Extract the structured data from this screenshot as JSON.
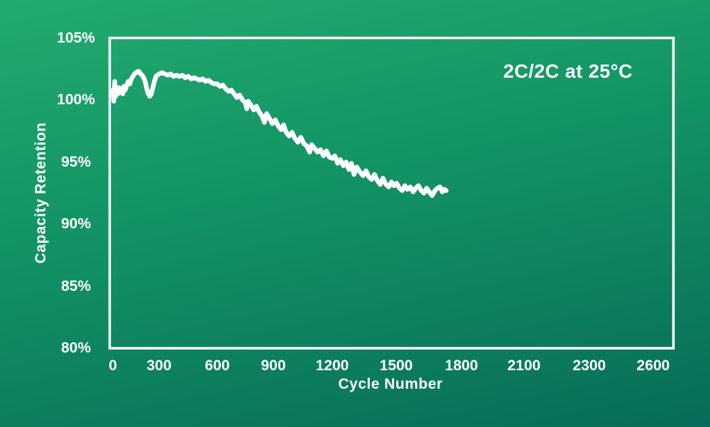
{
  "colors": {
    "background_top": "#23ab6f",
    "background_mid": "#129264",
    "background_bottom": "#086c59",
    "frame": "#ffffff",
    "text": "#ffffff",
    "line": "#ffffff"
  },
  "chart_data": {
    "type": "line",
    "title": "",
    "annotation": "2C/2C at 25°C",
    "xlabel": "Cycle Number",
    "ylabel": "Capacity Retention",
    "x_tick_labels": [
      "0",
      "300",
      "600",
      "900",
      "1200",
      "1500",
      "1800",
      "2100",
      "2300",
      "2600"
    ],
    "x_tick_values": [
      0,
      300,
      600,
      900,
      1200,
      1500,
      1800,
      2100,
      2300,
      2600
    ],
    "y_tick_labels": [
      "105%",
      "100%",
      "95%",
      "90%",
      "85%",
      "80%"
    ],
    "y_tick_values": [
      105,
      100,
      95,
      90,
      85,
      80
    ],
    "ylim": [
      80,
      105
    ],
    "grid": false,
    "legend_position": "none",
    "series": [
      {
        "name": "2C/2C at 25°C",
        "points": [
          [
            0,
            100.8
          ],
          [
            6,
            99.9
          ],
          [
            12,
            101.5
          ],
          [
            18,
            100.3
          ],
          [
            25,
            100.9
          ],
          [
            32,
            100.5
          ],
          [
            40,
            101.0
          ],
          [
            48,
            100.6
          ],
          [
            56,
            100.9
          ],
          [
            64,
            100.5
          ],
          [
            72,
            101.1
          ],
          [
            80,
            100.8
          ],
          [
            90,
            101.2
          ],
          [
            100,
            101.5
          ],
          [
            110,
            101.3
          ],
          [
            120,
            101.7
          ],
          [
            130,
            101.9
          ],
          [
            140,
            102.1
          ],
          [
            150,
            102.2
          ],
          [
            160,
            102.3
          ],
          [
            170,
            102.3
          ],
          [
            180,
            102.1
          ],
          [
            190,
            102.0
          ],
          [
            200,
            101.8
          ],
          [
            210,
            101.5
          ],
          [
            220,
            100.9
          ],
          [
            230,
            100.5
          ],
          [
            240,
            100.3
          ],
          [
            250,
            100.5
          ],
          [
            260,
            101.0
          ],
          [
            270,
            101.5
          ],
          [
            280,
            101.9
          ],
          [
            290,
            102.0
          ],
          [
            300,
            102.1
          ],
          [
            315,
            102.2
          ],
          [
            330,
            102.1
          ],
          [
            345,
            102.0
          ],
          [
            360,
            102.1
          ],
          [
            375,
            101.9
          ],
          [
            390,
            102.0
          ],
          [
            405,
            101.9
          ],
          [
            420,
            102.0
          ],
          [
            435,
            101.8
          ],
          [
            450,
            101.9
          ],
          [
            465,
            101.7
          ],
          [
            480,
            101.8
          ],
          [
            495,
            101.7
          ],
          [
            510,
            101.6
          ],
          [
            525,
            101.7
          ],
          [
            540,
            101.5
          ],
          [
            555,
            101.6
          ],
          [
            570,
            101.4
          ],
          [
            585,
            101.3
          ],
          [
            600,
            101.3
          ],
          [
            615,
            101.1
          ],
          [
            630,
            101.2
          ],
          [
            645,
            100.9
          ],
          [
            660,
            100.7
          ],
          [
            675,
            100.8
          ],
          [
            690,
            100.5
          ],
          [
            705,
            100.2
          ],
          [
            720,
            100.4
          ],
          [
            735,
            100.0
          ],
          [
            750,
            99.8
          ],
          [
            758,
            99.3
          ],
          [
            766,
            99.9
          ],
          [
            780,
            99.6
          ],
          [
            795,
            99.2
          ],
          [
            810,
            99.5
          ],
          [
            825,
            99.0
          ],
          [
            840,
            98.7
          ],
          [
            852,
            98.2
          ],
          [
            864,
            98.9
          ],
          [
            880,
            98.5
          ],
          [
            895,
            98.1
          ],
          [
            910,
            98.4
          ],
          [
            925,
            97.9
          ],
          [
            940,
            97.6
          ],
          [
            952,
            98.0
          ],
          [
            965,
            97.4
          ],
          [
            980,
            97.1
          ],
          [
            995,
            97.4
          ],
          [
            1010,
            96.9
          ],
          [
            1025,
            96.6
          ],
          [
            1040,
            97.0
          ],
          [
            1055,
            96.5
          ],
          [
            1070,
            96.3
          ],
          [
            1085,
            95.8
          ],
          [
            1095,
            96.4
          ],
          [
            1110,
            96.1
          ],
          [
            1125,
            95.8
          ],
          [
            1140,
            96.0
          ],
          [
            1155,
            95.5
          ],
          [
            1170,
            95.9
          ],
          [
            1185,
            95.4
          ],
          [
            1200,
            95.3
          ],
          [
            1212,
            95.5
          ],
          [
            1225,
            94.9
          ],
          [
            1238,
            95.2
          ],
          [
            1252,
            94.7
          ],
          [
            1265,
            95.0
          ],
          [
            1278,
            94.4
          ],
          [
            1290,
            94.9
          ],
          [
            1302,
            94.0
          ],
          [
            1315,
            94.6
          ],
          [
            1330,
            94.2
          ],
          [
            1345,
            93.9
          ],
          [
            1358,
            94.3
          ],
          [
            1372,
            93.8
          ],
          [
            1385,
            93.6
          ],
          [
            1398,
            94.0
          ],
          [
            1412,
            93.5
          ],
          [
            1425,
            93.2
          ],
          [
            1438,
            93.7
          ],
          [
            1452,
            93.2
          ],
          [
            1465,
            93.0
          ],
          [
            1478,
            93.4
          ],
          [
            1490,
            93.1
          ],
          [
            1502,
            93.3
          ],
          [
            1515,
            92.9
          ],
          [
            1528,
            92.7
          ],
          [
            1540,
            93.1
          ],
          [
            1552,
            92.8
          ],
          [
            1565,
            93.0
          ],
          [
            1578,
            92.6
          ],
          [
            1590,
            92.9
          ],
          [
            1602,
            93.1
          ],
          [
            1615,
            92.7
          ],
          [
            1628,
            92.5
          ],
          [
            1640,
            92.9
          ],
          [
            1652,
            92.6
          ],
          [
            1665,
            92.3
          ],
          [
            1678,
            92.7
          ],
          [
            1690,
            92.9
          ],
          [
            1702,
            93.0
          ],
          [
            1712,
            92.6
          ],
          [
            1722,
            92.8
          ],
          [
            1730,
            92.7
          ]
        ]
      }
    ]
  }
}
